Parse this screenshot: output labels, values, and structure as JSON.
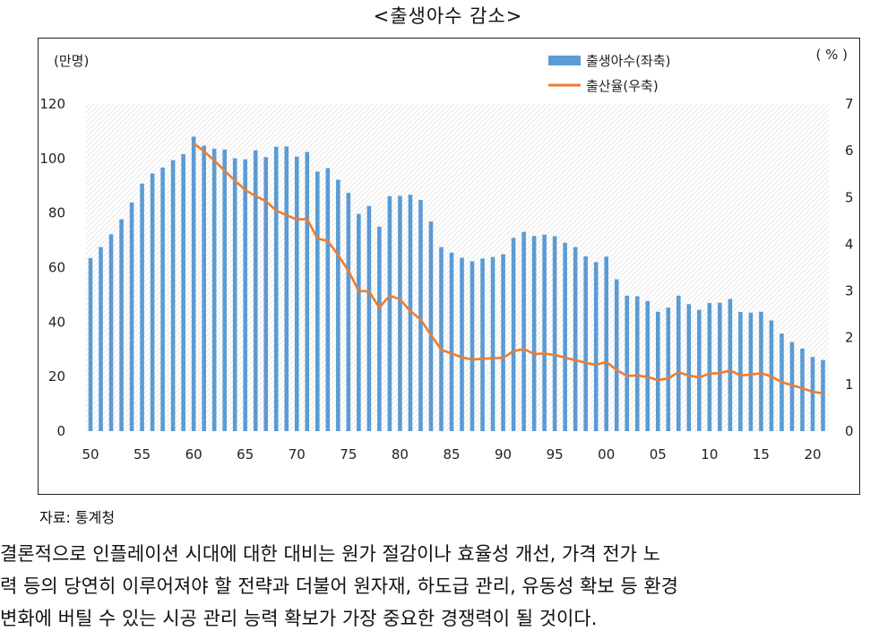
{
  "title": "<출생아수 감소>",
  "source": "자료: 통계청",
  "paragraph": [
    "결론적으로 인플레이션 시대에 대한 대비는 원가 절감이나 효율성 개선, 가격 전가 노",
    "력 등의 당연히 이루어져야 할 전략과 더불어 원자재, 하도급 관리, 유동성 확보 등 환경",
    "변화에 버틸 수 있는 시공 관리 능력 확보가 가장 중요한 경쟁력이 될 것이다."
  ],
  "chart_data": {
    "type": "bar",
    "left_unit": "(만명)",
    "right_unit": "( % )",
    "legend": {
      "placement": "top-right",
      "bar_label": "출생아수(좌축)",
      "line_label": "출산율(우축)"
    },
    "colors": {
      "bar": "#5b9bd5",
      "line": "#ed7d31"
    },
    "grid": false,
    "background": "diagonal-hatch",
    "ylim_left": [
      0,
      120
    ],
    "ylim_right": [
      0,
      7
    ],
    "left_ticks": [
      "0",
      "20",
      "40",
      "60",
      "80",
      "100",
      "120"
    ],
    "right_ticks": [
      "0",
      "1",
      "2",
      "3",
      "4",
      "5",
      "6",
      "7"
    ],
    "x_tick_labels": [
      "50",
      "55",
      "60",
      "65",
      "70",
      "75",
      "80",
      "85",
      "90",
      "95",
      "00",
      "05",
      "10",
      "15",
      "20"
    ],
    "years": [
      1950,
      1951,
      1952,
      1953,
      1954,
      1955,
      1956,
      1957,
      1958,
      1959,
      1960,
      1961,
      1962,
      1963,
      1964,
      1965,
      1966,
      1967,
      1968,
      1969,
      1970,
      1971,
      1972,
      1973,
      1974,
      1975,
      1976,
      1977,
      1978,
      1979,
      1980,
      1981,
      1982,
      1983,
      1984,
      1985,
      1986,
      1987,
      1988,
      1989,
      1990,
      1991,
      1992,
      1993,
      1994,
      1995,
      1996,
      1997,
      1998,
      1999,
      2000,
      2001,
      2002,
      2003,
      2004,
      2005,
      2006,
      2007,
      2008,
      2009,
      2010,
      2011,
      2012,
      2013,
      2014,
      2015,
      2016,
      2017,
      2018,
      2019,
      2020,
      2021
    ],
    "births": [
      63.5,
      67.5,
      72.2,
      77.7,
      83.9,
      90.8,
      94.5,
      96.7,
      99.4,
      101.6,
      108.0,
      104.7,
      103.6,
      103.3,
      100.1,
      99.7,
      103.0,
      100.5,
      104.3,
      104.4,
      100.7,
      102.4,
      95.2,
      96.5,
      92.2,
      87.4,
      79.7,
      82.6,
      75.0,
      86.2,
      86.3,
      86.7,
      84.8,
      76.9,
      67.5,
      65.5,
      63.6,
      62.3,
      63.3,
      63.9,
      64.9,
      70.9,
      73.1,
      71.6,
      72.1,
      71.5,
      69.1,
      67.5,
      64.1,
      62.0,
      64.0,
      55.7,
      49.7,
      49.5,
      47.7,
      43.8,
      45.3,
      49.7,
      46.6,
      44.5,
      47.0,
      47.1,
      48.5,
      43.7,
      43.5,
      43.8,
      40.6,
      35.8,
      32.7,
      30.3,
      27.2,
      26.1
    ],
    "fertility_years": [
      1960,
      1961,
      1962,
      1963,
      1964,
      1965,
      1966,
      1967,
      1968,
      1969,
      1970,
      1971,
      1972,
      1973,
      1974,
      1975,
      1976,
      1977,
      1978,
      1979,
      1980,
      1981,
      1982,
      1983,
      1984,
      1985,
      1986,
      1987,
      1988,
      1989,
      1990,
      1991,
      1992,
      1993,
      1994,
      1995,
      1996,
      1997,
      1998,
      1999,
      2000,
      2001,
      2002,
      2003,
      2004,
      2005,
      2006,
      2007,
      2008,
      2009,
      2010,
      2011,
      2012,
      2013,
      2014,
      2015,
      2016,
      2017,
      2018,
      2019,
      2020,
      2021
    ],
    "fertility": [
      6.16,
      5.99,
      5.79,
      5.57,
      5.36,
      5.16,
      5.03,
      4.92,
      4.72,
      4.62,
      4.53,
      4.54,
      4.12,
      4.07,
      3.77,
      3.43,
      3.0,
      2.99,
      2.64,
      2.9,
      2.82,
      2.57,
      2.39,
      2.06,
      1.74,
      1.66,
      1.58,
      1.53,
      1.55,
      1.56,
      1.57,
      1.71,
      1.76,
      1.65,
      1.66,
      1.63,
      1.57,
      1.52,
      1.46,
      1.42,
      1.48,
      1.31,
      1.18,
      1.19,
      1.16,
      1.09,
      1.13,
      1.26,
      1.19,
      1.15,
      1.23,
      1.24,
      1.3,
      1.19,
      1.21,
      1.24,
      1.17,
      1.05,
      0.98,
      0.92,
      0.84,
      0.81
    ]
  }
}
